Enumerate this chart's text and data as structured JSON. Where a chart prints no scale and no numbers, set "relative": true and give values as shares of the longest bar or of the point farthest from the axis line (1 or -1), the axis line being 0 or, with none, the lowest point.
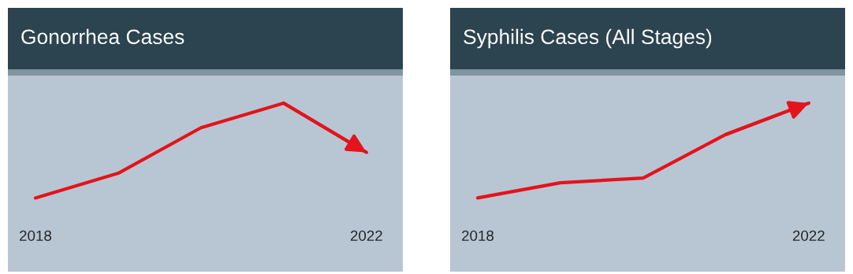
{
  "chart_data": [
    {
      "type": "line",
      "title": "Gonorrhea Cases",
      "categories": [
        "2018",
        null,
        null,
        null,
        "2022"
      ],
      "values": [
        0,
        0.26,
        0.74,
        1,
        0.48
      ],
      "color": "#e3141b",
      "relative": true
    },
    {
      "type": "line",
      "title": "Syphilis Cases (All Stages)",
      "categories": [
        "2018",
        null,
        null,
        null,
        "2022"
      ],
      "values": [
        0,
        0.16,
        0.21,
        0.67,
        1
      ],
      "color": "#e3141b",
      "relative": true
    }
  ]
}
